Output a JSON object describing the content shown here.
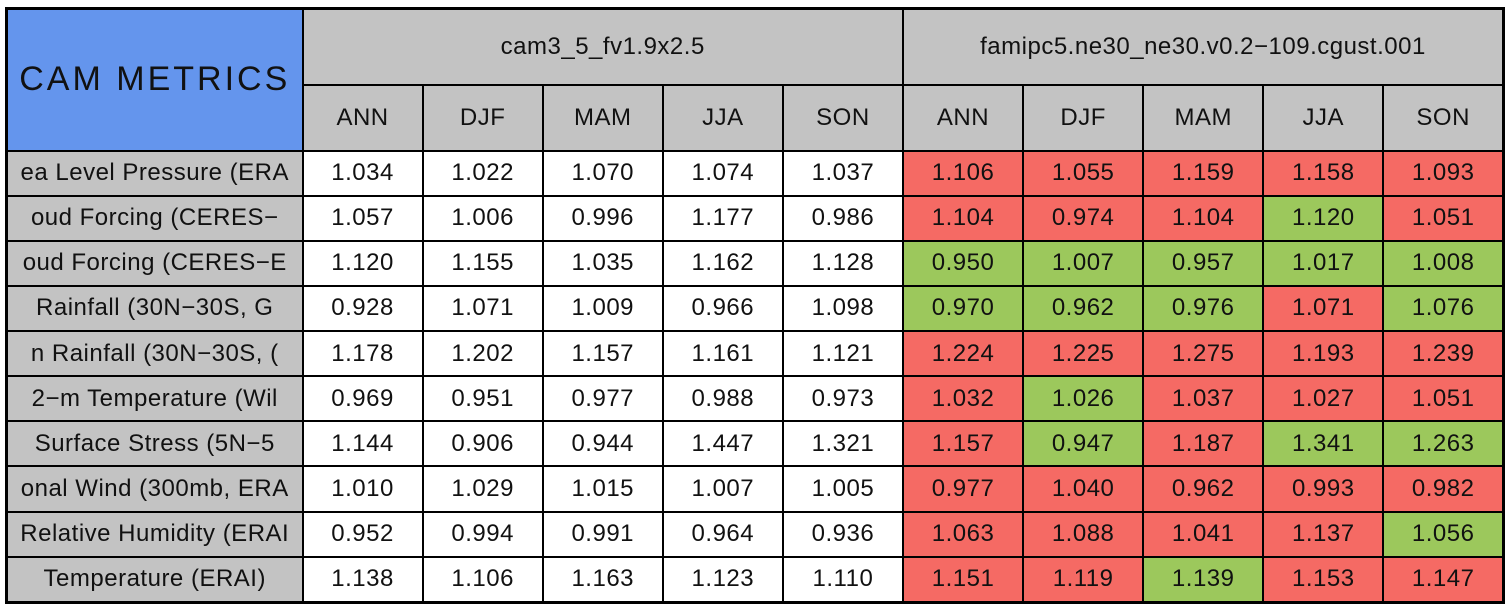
{
  "colors": {
    "corner_blue": "#6495ED",
    "header_gray": "#C3C3C3",
    "fail_red": "#F56A64",
    "pass_green": "#9CC85C",
    "cell_white": "#FFFFFF",
    "border": "#000000"
  },
  "chart_data": {
    "type": "table",
    "title": "CAM METRICS",
    "column_groups": [
      {
        "model": "cam3_5_fv1.9x2.5",
        "seasons": [
          "ANN",
          "DJF",
          "MAM",
          "JJA",
          "SON"
        ]
      },
      {
        "model": "famipc5.ne30_ne30.v0.2−109.cgust.001",
        "seasons": [
          "ANN",
          "DJF",
          "MAM",
          "JJA",
          "SON"
        ]
      }
    ],
    "rows": [
      {
        "label": "ea Level Pressure (ERA",
        "cam3": [
          "1.034",
          "1.022",
          "1.070",
          "1.074",
          "1.037"
        ],
        "famipc5": [
          "1.106",
          "1.055",
          "1.159",
          "1.158",
          "1.093"
        ],
        "famipc5_cell_colors": [
          "red",
          "red",
          "red",
          "red",
          "red"
        ]
      },
      {
        "label": "oud Forcing (CERES−",
        "cam3": [
          "1.057",
          "1.006",
          "0.996",
          "1.177",
          "0.986"
        ],
        "famipc5": [
          "1.104",
          "0.974",
          "1.104",
          "1.120",
          "1.051"
        ],
        "famipc5_cell_colors": [
          "red",
          "red",
          "red",
          "green",
          "red"
        ]
      },
      {
        "label": "oud Forcing (CERES−E",
        "cam3": [
          "1.120",
          "1.155",
          "1.035",
          "1.162",
          "1.128"
        ],
        "famipc5": [
          "0.950",
          "1.007",
          "0.957",
          "1.017",
          "1.008"
        ],
        "famipc5_cell_colors": [
          "green",
          "green",
          "green",
          "green",
          "green"
        ]
      },
      {
        "label": "Rainfall (30N−30S, G",
        "cam3": [
          "0.928",
          "1.071",
          "1.009",
          "0.966",
          "1.098"
        ],
        "famipc5": [
          "0.970",
          "0.962",
          "0.976",
          "1.071",
          "1.076"
        ],
        "famipc5_cell_colors": [
          "green",
          "green",
          "green",
          "red",
          "green"
        ]
      },
      {
        "label": "n Rainfall (30N−30S, (",
        "cam3": [
          "1.178",
          "1.202",
          "1.157",
          "1.161",
          "1.121"
        ],
        "famipc5": [
          "1.224",
          "1.225",
          "1.275",
          "1.193",
          "1.239"
        ],
        "famipc5_cell_colors": [
          "red",
          "red",
          "red",
          "red",
          "red"
        ]
      },
      {
        "label": "2−m Temperature (Wil",
        "cam3": [
          "0.969",
          "0.951",
          "0.977",
          "0.988",
          "0.973"
        ],
        "famipc5": [
          "1.032",
          "1.026",
          "1.037",
          "1.027",
          "1.051"
        ],
        "famipc5_cell_colors": [
          "red",
          "green",
          "red",
          "red",
          "red"
        ]
      },
      {
        "label": "Surface Stress (5N−5",
        "cam3": [
          "1.144",
          "0.906",
          "0.944",
          "1.447",
          "1.321"
        ],
        "famipc5": [
          "1.157",
          "0.947",
          "1.187",
          "1.341",
          "1.263"
        ],
        "famipc5_cell_colors": [
          "red",
          "green",
          "red",
          "green",
          "green"
        ]
      },
      {
        "label": "onal Wind (300mb, ERA",
        "cam3": [
          "1.010",
          "1.029",
          "1.015",
          "1.007",
          "1.005"
        ],
        "famipc5": [
          "0.977",
          "1.040",
          "0.962",
          "0.993",
          "0.982"
        ],
        "famipc5_cell_colors": [
          "red",
          "red",
          "red",
          "red",
          "red"
        ]
      },
      {
        "label": "Relative Humidity (ERAI",
        "cam3": [
          "0.952",
          "0.994",
          "0.991",
          "0.964",
          "0.936"
        ],
        "famipc5": [
          "1.063",
          "1.088",
          "1.041",
          "1.137",
          "1.056"
        ],
        "famipc5_cell_colors": [
          "red",
          "red",
          "red",
          "red",
          "green"
        ]
      },
      {
        "label": "Temperature (ERAI)",
        "cam3": [
          "1.138",
          "1.106",
          "1.163",
          "1.123",
          "1.110"
        ],
        "famipc5": [
          "1.151",
          "1.119",
          "1.139",
          "1.153",
          "1.147"
        ],
        "famipc5_cell_colors": [
          "red",
          "red",
          "green",
          "red",
          "red"
        ]
      }
    ]
  }
}
